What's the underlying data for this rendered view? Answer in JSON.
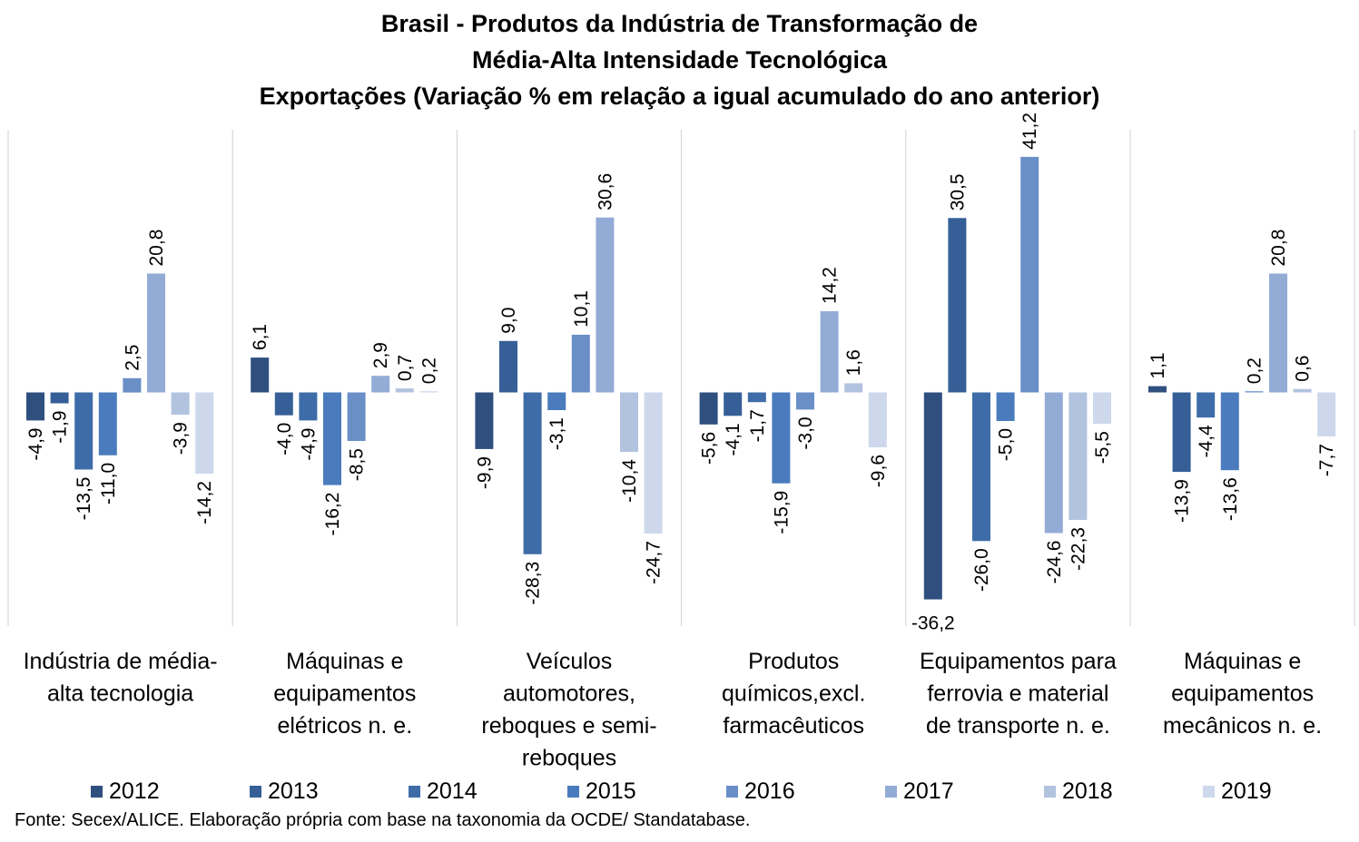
{
  "title": {
    "line1": "Brasil - Produtos da Indústria de Transformação de",
    "line2": "Média-Alta Intensidade Tecnológica",
    "line3": "Exportações (Variação % em relação a igual acumulado do ano anterior)"
  },
  "source": "Fonte: Secex/ALICE. Elaboração própria com base na taxonomia da OCDE/ Standatabase.",
  "chart_data": {
    "type": "bar",
    "ylim": [
      -40,
      45
    ],
    "grid": false,
    "legend_position": "bottom",
    "categories": [
      [
        "Indústria de média-",
        "alta tecnologia"
      ],
      [
        "Máquinas e",
        "equipamentos",
        "elétricos n. e."
      ],
      [
        "Veículos",
        "automotores,",
        "reboques e semi-",
        "reboques"
      ],
      [
        "Produtos",
        "químicos,excl.",
        "farmacêuticos"
      ],
      [
        "Equipamentos para",
        "ferrovia e material",
        "de transporte n. e."
      ],
      [
        "Máquinas e",
        "equipamentos",
        "mecânicos  n. e."
      ]
    ],
    "series": [
      {
        "name": "2012",
        "color": "#2f4f7f",
        "values": [
          -4.9,
          6.1,
          -9.9,
          -5.6,
          -36.2,
          1.1
        ],
        "labels": [
          "-4,9",
          "6,1",
          "-9,9",
          "-5,6",
          "-36,2",
          "1,1"
        ]
      },
      {
        "name": "2013",
        "color": "#355f96",
        "values": [
          -1.9,
          -4.0,
          9.0,
          -4.1,
          30.5,
          -13.9
        ],
        "labels": [
          "-1,9",
          "-4,0",
          "9,0",
          "-4,1",
          "30,5",
          "-13,9"
        ]
      },
      {
        "name": "2014",
        "color": "#3e6ca8",
        "values": [
          -13.5,
          -4.9,
          -28.3,
          -1.7,
          -26.0,
          -4.4
        ],
        "labels": [
          "-13,5",
          "-4,9",
          "-28,3",
          "-1,7",
          "-26,0",
          "-4,4"
        ]
      },
      {
        "name": "2015",
        "color": "#4a7bbd",
        "values": [
          -11.0,
          -16.2,
          -3.1,
          -15.9,
          -5.0,
          -13.6
        ],
        "labels": [
          "-11,0",
          "-16,2",
          "-3,1",
          "-15,9",
          "-5,0",
          "-13,6"
        ]
      },
      {
        "name": "2016",
        "color": "#6a8fc7",
        "values": [
          2.5,
          -8.5,
          10.1,
          -3.0,
          41.2,
          0.2
        ],
        "labels": [
          "2,5",
          "-8,5",
          "10,1",
          "-3,0",
          "41,2",
          "0,2"
        ]
      },
      {
        "name": "2017",
        "color": "#93acd6",
        "values": [
          20.8,
          2.9,
          30.6,
          14.2,
          -24.6,
          20.8
        ],
        "labels": [
          "20,8",
          "2,9",
          "30,6",
          "14,2",
          "-24,6",
          "20,8"
        ]
      },
      {
        "name": "2018",
        "color": "#b2c3e0",
        "values": [
          -3.9,
          0.7,
          -10.4,
          1.6,
          -22.3,
          0.6
        ],
        "labels": [
          "-3,9",
          "0,7",
          "-10,4",
          "1,6",
          "-22,3",
          "0,6"
        ]
      },
      {
        "name": "2019",
        "color": "#cdd8ec",
        "values": [
          -14.2,
          0.2,
          -24.7,
          -9.6,
          -5.5,
          -7.7
        ],
        "labels": [
          "-14,2",
          "0,2",
          "-24,7",
          "-9,6",
          "-5,5",
          "-7,7"
        ]
      }
    ]
  }
}
